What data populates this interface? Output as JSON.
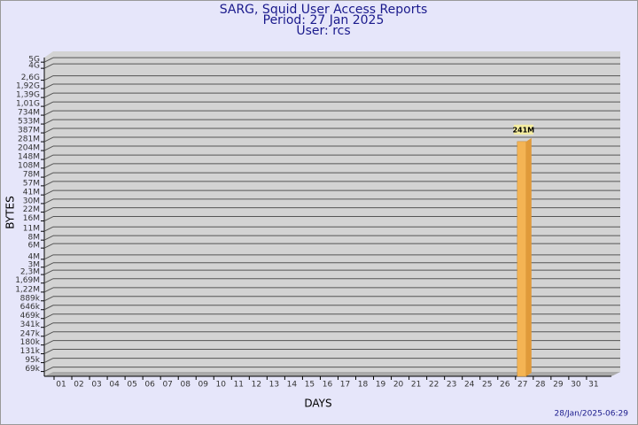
{
  "chart_data": {
    "type": "bar",
    "title": "SARG, Squid User Access Reports",
    "subtitle": [
      "Period: 27 Jan 2025",
      "User: rcs"
    ],
    "x_label": "DAYS",
    "y_label": "BYTES",
    "footer": "28/Jan/2025-06:29",
    "categories": [
      "01",
      "02",
      "03",
      "04",
      "05",
      "06",
      "07",
      "08",
      "09",
      "10",
      "11",
      "12",
      "13",
      "14",
      "15",
      "16",
      "17",
      "18",
      "19",
      "20",
      "21",
      "22",
      "23",
      "24",
      "25",
      "26",
      "27",
      "28",
      "29",
      "30",
      "31"
    ],
    "values": [
      null,
      null,
      null,
      null,
      null,
      null,
      null,
      null,
      null,
      null,
      null,
      null,
      null,
      null,
      null,
      null,
      null,
      null,
      null,
      null,
      null,
      null,
      null,
      null,
      null,
      null,
      241000000,
      null,
      null,
      null,
      null
    ],
    "value_labels": [
      null,
      null,
      null,
      null,
      null,
      null,
      null,
      null,
      null,
      null,
      null,
      null,
      null,
      null,
      null,
      null,
      null,
      null,
      null,
      null,
      null,
      null,
      null,
      null,
      null,
      null,
      "241M",
      null,
      null,
      null,
      null
    ],
    "color": "#f4b454",
    "log_scale": true,
    "grid": true,
    "ylim": [
      58000,
      5900000000
    ],
    "yticks": [
      {
        "value": 69000,
        "label": "69k"
      },
      {
        "value": 95000,
        "label": "95k"
      },
      {
        "value": 131000,
        "label": "131k"
      },
      {
        "value": 180000,
        "label": "180k"
      },
      {
        "value": 247000,
        "label": "247k"
      },
      {
        "value": 341000,
        "label": "341k"
      },
      {
        "value": 469000,
        "label": "469k"
      },
      {
        "value": 646000,
        "label": "646k"
      },
      {
        "value": 889000,
        "label": "889k"
      },
      {
        "value": 1220000,
        "label": "1,22M"
      },
      {
        "value": 1690000,
        "label": "1,69M"
      },
      {
        "value": 2300000,
        "label": "2,3M"
      },
      {
        "value": 3000000,
        "label": "3M"
      },
      {
        "value": 4000000,
        "label": "4M"
      },
      {
        "value": 6000000,
        "label": "6M"
      },
      {
        "value": 8000000,
        "label": "8M"
      },
      {
        "value": 11000000,
        "label": "11M"
      },
      {
        "value": 16000000,
        "label": "16M"
      },
      {
        "value": 22000000,
        "label": "22M"
      },
      {
        "value": 30000000,
        "label": "30M"
      },
      {
        "value": 41000000,
        "label": "41M"
      },
      {
        "value": 57000000,
        "label": "57M"
      },
      {
        "value": 78000000,
        "label": "78M"
      },
      {
        "value": 108000000,
        "label": "108M"
      },
      {
        "value": 148000000,
        "label": "148M"
      },
      {
        "value": 204000000,
        "label": "204M"
      },
      {
        "value": 281000000,
        "label": "281M"
      },
      {
        "value": 387000000,
        "label": "387M"
      },
      {
        "value": 533000000,
        "label": "533M"
      },
      {
        "value": 734000000,
        "label": "734M"
      },
      {
        "value": 1010000000,
        "label": "1,01G"
      },
      {
        "value": 1390000000,
        "label": "1,39G"
      },
      {
        "value": 1920000000,
        "label": "1,92G"
      },
      {
        "value": 2600000000,
        "label": "2,6G"
      },
      {
        "value": 4000000000,
        "label": "4G"
      },
      {
        "value": 5000000000,
        "label": "5G"
      }
    ]
  }
}
